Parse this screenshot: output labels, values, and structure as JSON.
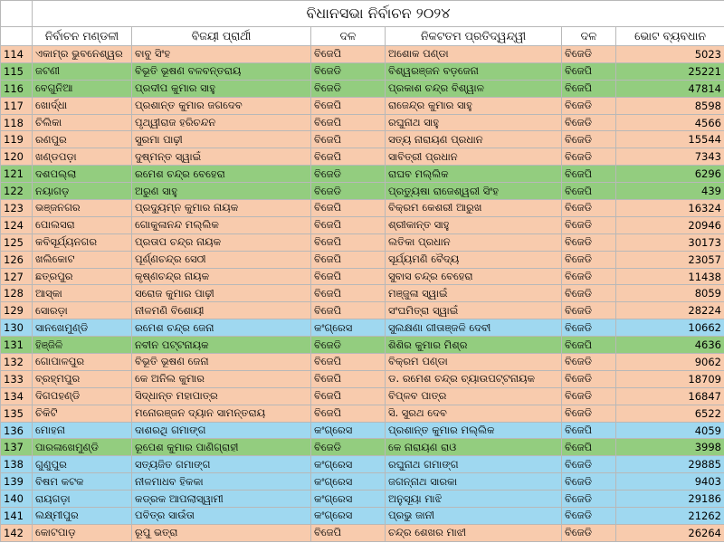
{
  "title": "ବିଧାନସଭା ନିର୍ବାଚନ ୨୦୨୪",
  "table": {
    "headers": [
      "ନିର୍ବାଚନ ମଣ୍ଡଳୀ",
      "ବିଜୟୀ ପ୍ରାର୍ଥୀ",
      "ଦଳ",
      "ନିକଟତମ ପ୍ରତିଦ୍ୱନ୍ଦ୍ୱୀ",
      "ଦଳ",
      "ଭୋଟ ବ୍ୟବଧାନ"
    ],
    "rows": [
      {
        "no": 114,
        "constituency": "ଏକାମ୍ର ଭୁବନେଶ୍ୱର",
        "winner": "ବାବୁ ସିଂହ",
        "winner_party": "ବିଜେପି",
        "runner_up": "ଅଶୋକ ପଣ୍ଡା",
        "runner_up_party": "ବିଜେଡି",
        "margin": 5023,
        "color": "#f8cbad"
      },
      {
        "no": 115,
        "constituency": "ଜଟଣୀ",
        "winner": "ବିଭୂତି ଭୂଷଣ ବଳବନ୍ତରାୟ",
        "winner_party": "ବିଜେଡି",
        "runner_up": "ବିଶ୍ୱରଞ୍ଜନ ବଡ଼ଜେନା",
        "runner_up_party": "ବିଜେପି",
        "margin": 25221,
        "color": "#93cd7f"
      },
      {
        "no": 116,
        "constituency": "ବେଗୁନିଆ",
        "winner": "ପ୍ରଦୀପ କୁମାର ସାହୁ",
        "winner_party": "ବିଜେଡି",
        "runner_up": "ପ୍ରକାଶ ଚନ୍ଦ୍ର ବିଶ୍ୱାଳ",
        "runner_up_party": "ବିଜେପି",
        "margin": 47814,
        "color": "#93cd7f"
      },
      {
        "no": 117,
        "constituency": "ଖୋର୍ଦ୍ଧା",
        "winner": "ପ୍ରଶାନ୍ତ କୁମାର ଜଗଦେବ",
        "winner_party": "ବିଜେପି",
        "runner_up": "ରାଜେନ୍ଦ୍ର କୁମାର ସାହୁ",
        "runner_up_party": "ବିଜେଡି",
        "margin": 8598,
        "color": "#f8cbad"
      },
      {
        "no": 118,
        "constituency": "ଚିଲିକା",
        "winner": "ପୃଥ୍ୱୀରାଜ ହରିଚନ୍ଦନ",
        "winner_party": "ବିଜେପି",
        "runner_up": "ରଘୁନାଥ ସାହୁ",
        "runner_up_party": "ବିଜେଡି",
        "margin": 4566,
        "color": "#f8cbad"
      },
      {
        "no": 119,
        "constituency": "ରଣପୁର",
        "winner": "ସୁରମା ପାଢ଼ୀ",
        "winner_party": "ବିଜେପି",
        "runner_up": "ସତ୍ୟ ନାରାୟଣ ପ୍ରଧାନ",
        "runner_up_party": "ବିଜେଡି",
        "margin": 15544,
        "color": "#f8cbad"
      },
      {
        "no": 120,
        "constituency": "ଖଣ୍ଡପଡ଼ା",
        "winner": "ଦୁଷ୍ମନ୍ତ ସ୍ୱାଇଁ",
        "winner_party": "ବିଜେପି",
        "runner_up": "ସାବିତ୍ରୀ ପ୍ରଧାନ",
        "runner_up_party": "ବିଜେଡି",
        "margin": 7343,
        "color": "#f8cbad"
      },
      {
        "no": 121,
        "constituency": "ଦଶପଲ୍ଲା",
        "winner": "ରମେଶ ଚନ୍ଦ୍ର ବେହେରା",
        "winner_party": "ବିଜେଡି",
        "runner_up": "ରାଘବ ମଲ୍ଲିକ",
        "runner_up_party": "ବିଜେପି",
        "margin": 6296,
        "color": "#93cd7f"
      },
      {
        "no": 122,
        "constituency": "ନୟାଗଡ଼",
        "winner": "ଅରୁଣ ସାହୁ",
        "winner_party": "ବିଜେଡି",
        "runner_up": "ପ୍ରତ୍ୟୁଷା ରାଜେଶ୍ୱରୀ ସିଂହ",
        "runner_up_party": "ବିଜେପି",
        "margin": 439,
        "color": "#93cd7f"
      },
      {
        "no": 123,
        "constituency": "ଭଞ୍ଜନଗର",
        "winner": "ପ୍ରଦ୍ୟୁମ୍ନ କୁମାର ନାୟକ",
        "winner_party": "ବିଜେପି",
        "runner_up": "ବିକ୍ରମ କେଶରୀ ଆରୁଖ",
        "runner_up_party": "ବିଜେଡି",
        "margin": 16324,
        "color": "#f8cbad"
      },
      {
        "no": 124,
        "constituency": "ପୋଲସରା",
        "winner": "ଗୋକୁଳାନନ୍ଦ ମଲ୍ଲିକ",
        "winner_party": "ବିଜେପି",
        "runner_up": "ଶ୍ରୀକାନ୍ତ ସାହୁ",
        "runner_up_party": "ବିଜେଡି",
        "margin": 20946,
        "color": "#f8cbad"
      },
      {
        "no": 125,
        "constituency": "କବିସୂର୍ଯ୍ୟନଗର",
        "winner": "ପ୍ରତାପ ଚନ୍ଦ୍ର ନାୟକ",
        "winner_party": "ବିଜେପି",
        "runner_up": "ଲତିକା ପ୍ରଧାନ",
        "runner_up_party": "ବିଜେଡି",
        "margin": 30173,
        "color": "#f8cbad"
      },
      {
        "no": 126,
        "constituency": "ଖଲିକୋଟ",
        "winner": "ପୂର୍ଣ୍ଣଚନ୍ଦ୍ର ସେଠୀ",
        "winner_party": "ବିଜେପି",
        "runner_up": "ସୂର୍ଯ୍ୟମଣି ବୈଦ୍ୟ",
        "runner_up_party": "ବିଜେଡି",
        "margin": 23057,
        "color": "#f8cbad"
      },
      {
        "no": 127,
        "constituency": "ଛତ୍ରପୁର",
        "winner": "କୃଷ୍ଣଚନ୍ଦ୍ର ନାୟକ",
        "winner_party": "ବିଜେପି",
        "runner_up": "ସୁବାସ ଚନ୍ଦ୍ର ବେହେରା",
        "runner_up_party": "ବିଜେଡି",
        "margin": 11438,
        "color": "#f8cbad"
      },
      {
        "no": 128,
        "constituency": "ଆସ୍କା",
        "winner": "ସରୋଜ କୁମାର ପାଢ଼ୀ",
        "winner_party": "ବିଜେପି",
        "runner_up": "ମଞ୍ଜୁଳା ସ୍ୱାଇଁ",
        "runner_up_party": "ବିଜେଡି",
        "margin": 8059,
        "color": "#f8cbad"
      },
      {
        "no": 129,
        "constituency": "ସୋରଡ଼ା",
        "winner": "ନୀଳମଣି ବିଶୋୟୀ",
        "winner_party": "ବିଜେପି",
        "runner_up": "ସଂଘମିତ୍ରା ସ୍ୱାଇଁ",
        "runner_up_party": "ବିଜେଡି",
        "margin": 28224,
        "color": "#f8cbad"
      },
      {
        "no": 130,
        "constituency": "ସାନଖେମୁଣ୍ଡି",
        "winner": "ରମେଶ ଚନ୍ଦ୍ର ଜେନା",
        "winner_party": "କଂଗ୍ରେସ",
        "runner_up": "ସୁଲକ୍ଷଣା ଗୀତାଞ୍ଜଳି ଦେବୀ",
        "runner_up_party": "ବିଜେଡି",
        "margin": 10662,
        "color": "#9fd8f0"
      },
      {
        "no": 131,
        "constituency": "ହିଞ୍ଜିଳି",
        "winner": "ନବୀନ ପଟ୍ଟନାୟକ",
        "winner_party": "ବିଜେଡି",
        "runner_up": "ଶିଶିର କୁମାର ମିଶ୍ର",
        "runner_up_party": "ବିଜେପି",
        "margin": 4636,
        "color": "#93cd7f"
      },
      {
        "no": 132,
        "constituency": "ଗୋପାଳପୁର",
        "winner": "ବିଭୂତି ଭୂଷଣ ଜେନା",
        "winner_party": "ବିଜେପି",
        "runner_up": "ବିକ୍ରମ ପଣ୍ଡା",
        "runner_up_party": "ବିଜେଡି",
        "margin": 9062,
        "color": "#f8cbad"
      },
      {
        "no": 133,
        "constituency": "ବ୍ରହ୍ମପୁର",
        "winner": "କେ ଅନିଲ କୁମାର",
        "winner_party": "ବିଜେପି",
        "runner_up": "ଡ. ରମେଶ ଚନ୍ଦ୍ର ଚ୍ୟାଉପଟ୍ଟନାୟକ",
        "runner_up_party": "ବିଜେଡି",
        "margin": 18709,
        "color": "#f8cbad"
      },
      {
        "no": 134,
        "constituency": "ଦିଗପହଣ୍ଡି",
        "winner": "ସିଦ୍ଧାନ୍ତ ମହାପାତ୍ର",
        "winner_party": "ବିଜେପି",
        "runner_up": "ବିପ୍ଳବ ପାତ୍ର",
        "runner_up_party": "ବିଜେଡି",
        "margin": 16847,
        "color": "#f8cbad"
      },
      {
        "no": 135,
        "constituency": "ଚିକିଟି",
        "winner": "ମନୋରଞ୍ଜନ ଦ୍ୟାନ ସାମନ୍ତରାୟ",
        "winner_party": "ବିଜେପି",
        "runner_up": "ସି. ସୁରଥ ଦେବ",
        "runner_up_party": "ବିଜେଡି",
        "margin": 6522,
        "color": "#f8cbad"
      },
      {
        "no": 136,
        "constituency": "ମୋହନା",
        "winner": "ଦାଶରଥି ଗମାଙ୍ଗ",
        "winner_party": "କଂଗ୍ରେସ",
        "runner_up": "ପ୍ରଶାନ୍ତ କୁମାର ମଲ୍ଲିକ",
        "runner_up_party": "ବିଜେପି",
        "margin": 4059,
        "color": "#9fd8f0"
      },
      {
        "no": 137,
        "constituency": "ପାରଳାଖେମୁଣ୍ଡି",
        "winner": "ରୂପେଶ କୁମାର ପାଣିଗ୍ରାହୀ",
        "winner_party": "ବିଜେଡି",
        "runner_up": "କେ ନାରାୟଣ ରାଓ",
        "runner_up_party": "ବିଜେପି",
        "margin": 3998,
        "color": "#93cd7f"
      },
      {
        "no": 138,
        "constituency": "ଗୁଣୁପୁର",
        "winner": "ସତ୍ୟଜିତ ଗମାଙ୍ଗ",
        "winner_party": "କଂଗ୍ରେସ",
        "runner_up": "ରଘୁନାଥ ଗମାଙ୍ଗ",
        "runner_up_party": "ବିଜେଡି",
        "margin": 29885,
        "color": "#9fd8f0"
      },
      {
        "no": 139,
        "constituency": "ବିଷମ କଟକ",
        "winner": "ନୀଳମାଧବ ହିକକା",
        "winner_party": "କଂଗ୍ରେସ",
        "runner_up": "ଜଗନ୍ନାଥ ସାରକା",
        "runner_up_party": "ବିଜେଡି",
        "margin": 9403,
        "color": "#9fd8f0"
      },
      {
        "no": 140,
        "constituency": "ରାୟଗଡ଼ା",
        "winner": "କଡ୍ରକ ଆପଲାସ୍ୱାମୀ",
        "winner_party": "କଂଗ୍ରେସ",
        "runner_up": "ଅନୁସୂୟା ମାଝି",
        "runner_up_party": "ବିଜେଡି",
        "margin": 29186,
        "color": "#9fd8f0"
      },
      {
        "no": 141,
        "constituency": "ଲକ୍ଷ୍ମୀପୁର",
        "winner": "ପବିତ୍ର ସାଉଁତା",
        "winner_party": "କଂଗ୍ରେସ",
        "runner_up": "ପ୍ରଭୁ ଜାନୀ",
        "runner_up_party": "ବିଜେଡି",
        "margin": 21262,
        "color": "#9fd8f0"
      },
      {
        "no": 142,
        "constituency": "କୋଟପାଡ଼",
        "winner": "ରୂପୁ ଭତ୍ରା",
        "winner_party": "ବିଜେପି",
        "runner_up": "ଚନ୍ଦ୍ର ଶେଖର ମାଝୀ",
        "runner_up_party": "ବିଜେଡି",
        "margin": 26264,
        "color": "#f8cbad"
      }
    ]
  }
}
